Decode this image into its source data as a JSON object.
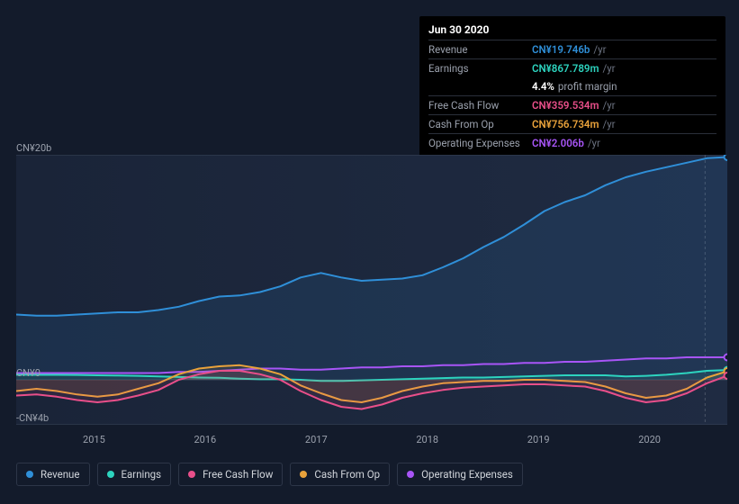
{
  "tooltip": {
    "date": "Jun 30 2020",
    "rows": [
      {
        "label": "Revenue",
        "value": "CN¥19.746b",
        "suffix": "/yr",
        "color": "#2f8fd8"
      },
      {
        "label": "Earnings",
        "value": "CN¥867.789m",
        "suffix": "/yr",
        "color": "#2dd4bf"
      },
      {
        "label": "",
        "value": "4.4%",
        "suffix2": "profit margin",
        "color": "#ffffff",
        "noborder": true
      },
      {
        "label": "Free Cash Flow",
        "value": "CN¥359.534m",
        "suffix": "/yr",
        "color": "#e94f8a"
      },
      {
        "label": "Cash From Op",
        "value": "CN¥756.734m",
        "suffix": "/yr",
        "color": "#e9a23b"
      },
      {
        "label": "Operating Expenses",
        "value": "CN¥2.006b",
        "suffix": "/yr",
        "color": "#a855f7"
      }
    ]
  },
  "chart": {
    "background_gradient": [
      "#1a2438",
      "#1f2b42"
    ],
    "y_min": -4,
    "y_max": 20,
    "y_ticks": [
      {
        "v": 20,
        "label": "CN¥20b"
      },
      {
        "v": 0,
        "label": "CN¥0"
      },
      {
        "v": -4,
        "label": "-CN¥4b"
      }
    ],
    "x_min": 2014.3,
    "x_max": 2020.7,
    "x_ticks": [
      2015,
      2016,
      2017,
      2018,
      2019,
      2020
    ],
    "vline_x": 2020.5,
    "series": [
      {
        "name": "Revenue",
        "color": "#2f8fd8",
        "width": 2,
        "fill_opacity": 0.12,
        "y": [
          5.8,
          5.7,
          5.7,
          5.8,
          5.9,
          6.0,
          6.0,
          6.2,
          6.5,
          7.0,
          7.4,
          7.5,
          7.8,
          8.3,
          9.1,
          9.5,
          9.1,
          8.8,
          8.9,
          9.0,
          9.3,
          10.0,
          10.8,
          11.8,
          12.7,
          13.8,
          15.0,
          15.8,
          16.4,
          17.3,
          18.0,
          18.5,
          18.9,
          19.3,
          19.7,
          19.8
        ]
      },
      {
        "name": "Operating Expenses",
        "color": "#a855f7",
        "width": 2,
        "fill_opacity": 0.0,
        "y": [
          0.6,
          0.6,
          0.6,
          0.6,
          0.6,
          0.6,
          0.6,
          0.6,
          0.7,
          0.7,
          0.8,
          0.9,
          1.0,
          1.0,
          0.9,
          0.9,
          1.0,
          1.1,
          1.1,
          1.2,
          1.2,
          1.3,
          1.3,
          1.4,
          1.4,
          1.5,
          1.5,
          1.6,
          1.6,
          1.7,
          1.8,
          1.9,
          1.9,
          2.0,
          2.0,
          2.0
        ]
      },
      {
        "name": "Earnings",
        "color": "#2dd4bf",
        "width": 2,
        "fill_opacity": 0.1,
        "y": [
          0.45,
          0.44,
          0.44,
          0.43,
          0.4,
          0.38,
          0.35,
          0.3,
          0.25,
          0.2,
          0.18,
          0.1,
          0.05,
          0.05,
          0.0,
          -0.1,
          -0.1,
          -0.05,
          0.0,
          0.05,
          0.1,
          0.15,
          0.2,
          0.2,
          0.25,
          0.3,
          0.35,
          0.4,
          0.4,
          0.4,
          0.3,
          0.35,
          0.45,
          0.6,
          0.8,
          0.87
        ]
      },
      {
        "name": "Cash From Op",
        "color": "#e9a23b",
        "width": 2,
        "fill_opacity": 0.1,
        "y": [
          -1.0,
          -0.8,
          -1.0,
          -1.3,
          -1.5,
          -1.3,
          -0.8,
          -0.3,
          0.5,
          1.0,
          1.2,
          1.3,
          1.0,
          0.5,
          -0.5,
          -1.2,
          -1.8,
          -2.0,
          -1.6,
          -1.0,
          -0.6,
          -0.3,
          -0.2,
          -0.1,
          -0.1,
          0.0,
          0.0,
          -0.1,
          -0.2,
          -0.6,
          -1.2,
          -1.6,
          -1.4,
          -0.8,
          0.2,
          0.76
        ]
      },
      {
        "name": "Free Cash Flow",
        "color": "#e94f8a",
        "width": 2,
        "fill_opacity": 0.1,
        "y": [
          -1.4,
          -1.3,
          -1.5,
          -1.8,
          -2.0,
          -1.8,
          -1.4,
          -0.9,
          0.0,
          0.5,
          0.8,
          0.8,
          0.5,
          0.0,
          -1.0,
          -1.8,
          -2.4,
          -2.6,
          -2.2,
          -1.6,
          -1.2,
          -0.9,
          -0.7,
          -0.6,
          -0.5,
          -0.4,
          -0.4,
          -0.5,
          -0.6,
          -1.0,
          -1.6,
          -2.0,
          -1.8,
          -1.2,
          -0.3,
          0.36
        ]
      }
    ]
  },
  "legend": [
    {
      "label": "Revenue",
      "color": "#2f8fd8"
    },
    {
      "label": "Earnings",
      "color": "#2dd4bf"
    },
    {
      "label": "Free Cash Flow",
      "color": "#e94f8a"
    },
    {
      "label": "Cash From Op",
      "color": "#e9a23b"
    },
    {
      "label": "Operating Expenses",
      "color": "#a855f7"
    }
  ]
}
